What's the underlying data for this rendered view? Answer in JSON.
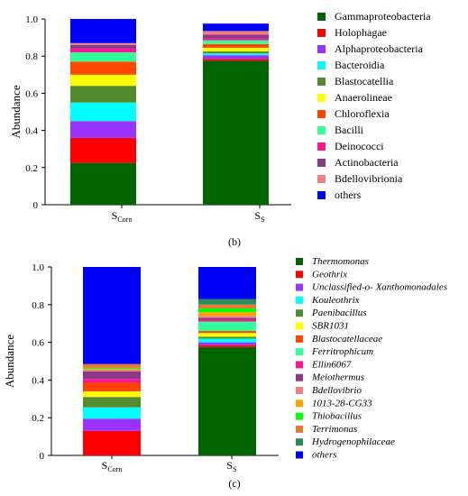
{
  "chart_data": [
    {
      "type": "bar",
      "stacked": true,
      "panel_label": "(b)",
      "ylabel": "Abundance",
      "ylim": [
        0,
        1.0
      ],
      "yticks": [
        "0",
        "0.2",
        "0.4",
        "0.6",
        "0.8",
        "1.0"
      ],
      "categories": [
        {
          "main": "S",
          "sub": "Corn"
        },
        {
          "main": "S",
          "sub": "S"
        }
      ],
      "legend_position": "right",
      "series": [
        {
          "name": "Gammaproteobacteria",
          "color": "#006400",
          "values": [
            0.225,
            0.775
          ]
        },
        {
          "name": "Holophagae",
          "color": "#ff0000",
          "values": [
            0.135,
            0.01
          ]
        },
        {
          "name": "Alphaproteobacteria",
          "color": "#9933ff",
          "values": [
            0.09,
            0.02
          ]
        },
        {
          "name": "Bacteroidia",
          "color": "#00ffff",
          "values": [
            0.1,
            0.01
          ]
        },
        {
          "name": "Blastocatellia",
          "color": "#558b2f",
          "values": [
            0.09,
            0.01
          ]
        },
        {
          "name": "Anaerolineae",
          "color": "#ffff00",
          "values": [
            0.06,
            0.02
          ]
        },
        {
          "name": "Chloroflexia",
          "color": "#ff4500",
          "values": [
            0.07,
            0.02
          ]
        },
        {
          "name": "Bacilli",
          "color": "#33ff99",
          "values": [
            0.05,
            0.02
          ]
        },
        {
          "name": "Deinococci",
          "color": "#ff1493",
          "values": [
            0.02,
            0.01
          ]
        },
        {
          "name": "Actinobacteria",
          "color": "#8b3a8b",
          "values": [
            0.02,
            0.02
          ]
        },
        {
          "name": "Bdellovibrionia",
          "color": "#f08080",
          "values": [
            0.01,
            0.02
          ]
        },
        {
          "name": "others",
          "color": "#0000ff",
          "values": [
            0.13,
            0.04
          ]
        }
      ]
    },
    {
      "type": "bar",
      "stacked": true,
      "panel_label": "(c)",
      "ylabel": "Abundance",
      "ylim": [
        0,
        1.0
      ],
      "yticks": [
        "0",
        "0.2",
        "0.4",
        "0.6",
        "0.8",
        "1.0"
      ],
      "categories": [
        {
          "main": "S",
          "sub": "Corn"
        },
        {
          "main": "S",
          "sub": "S"
        }
      ],
      "legend_position": "right",
      "series": [
        {
          "name": "Thermomonas",
          "color": "#006400",
          "values": [
            0.0,
            0.575
          ]
        },
        {
          "name": "Geothrix",
          "color": "#ff0000",
          "values": [
            0.13,
            0.01
          ]
        },
        {
          "name": "Unclassified-o-  Xanthomonadales",
          "color": "#9933ff",
          "values": [
            0.065,
            0.015
          ]
        },
        {
          "name": "Kouleothrix",
          "color": "#00ffff",
          "values": [
            0.06,
            0.02
          ]
        },
        {
          "name": "Paenibacillus",
          "color": "#558b2f",
          "values": [
            0.055,
            0.01
          ]
        },
        {
          "name": "SBR1031",
          "color": "#ffff00",
          "values": [
            0.03,
            0.02
          ]
        },
        {
          "name": "Blastocatellaceae",
          "color": "#ff4500",
          "values": [
            0.045,
            0.01
          ]
        },
        {
          "name": "Ferritrophicum",
          "color": "#33ff99",
          "values": [
            0.0,
            0.05
          ]
        },
        {
          "name": "Ellin6067",
          "color": "#ff1493",
          "values": [
            0.02,
            0.01
          ]
        },
        {
          "name": "Meiothermus",
          "color": "#8b3a8b",
          "values": [
            0.04,
            0.01
          ]
        },
        {
          "name": "Bdellovibrio",
          "color": "#f08080",
          "values": [
            0.01,
            0.01
          ]
        },
        {
          "name": "1013-28-CG33",
          "color": "#ffa500",
          "values": [
            0.005,
            0.02
          ]
        },
        {
          "name": "Thiobacillus",
          "color": "#00ff00",
          "values": [
            0.005,
            0.02
          ]
        },
        {
          "name": "Terrimonas",
          "color": "#e07b39",
          "values": [
            0.02,
            0.02
          ]
        },
        {
          "name": "Hydrogenophilaceae",
          "color": "#2e8b57",
          "values": [
            0.0,
            0.03
          ]
        },
        {
          "name": "others",
          "color": "#0000ff",
          "values": [
            0.515,
            0.17
          ]
        }
      ]
    }
  ]
}
